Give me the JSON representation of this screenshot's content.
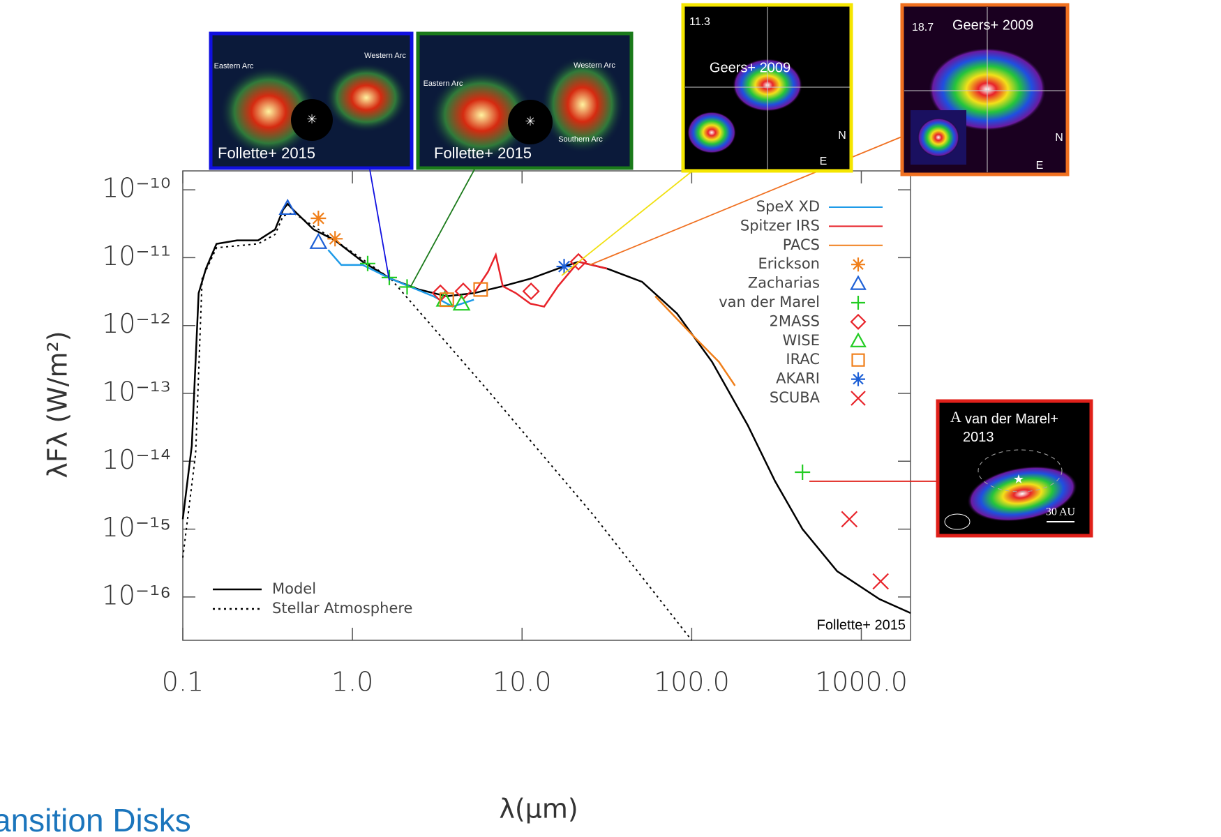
{
  "chart_data": {
    "type": "line",
    "x_label": "λ(μm)",
    "y_label": "λFλ (W/m²)",
    "xscale": "log",
    "yscale": "log",
    "xlim": [
      0.1,
      1950
    ],
    "ylim": [
      2.3e-17,
      1.9e-10
    ],
    "xticks": [
      0.1,
      {
        "value": 1,
        "label": "1.0"
      },
      {
        "value": 10,
        "label": "10.0"
      },
      {
        "value": 100,
        "label": "100.0"
      },
      {
        "value": 1000,
        "label": "1000.0"
      }
    ],
    "yticks": [
      {
        "value": 1e-10,
        "label": "10⁻¹⁰"
      },
      {
        "value": 1e-11,
        "label": "10⁻¹¹"
      },
      {
        "value": 1e-12,
        "label": "10⁻¹²"
      },
      {
        "value": 1e-13,
        "label": "10⁻¹³"
      },
      {
        "value": 1e-14,
        "label": "10⁻¹⁴"
      },
      {
        "value": 1e-15,
        "label": "10⁻¹⁵"
      },
      {
        "value": 1e-16,
        "label": "10⁻¹⁶"
      }
    ],
    "series": [
      {
        "name": "Model",
        "color": "#000000",
        "style": "solid",
        "legend": "lower-left",
        "x": [
          0.1,
          0.113,
          0.124,
          0.137,
          0.158,
          0.209,
          0.278,
          0.35,
          0.39,
          0.415,
          0.447,
          0.59,
          0.79,
          1.15,
          1.68,
          2.46,
          3.58,
          5.2,
          7.7,
          11.2,
          16.3,
          21.5,
          31.7,
          51,
          82,
          132,
          214,
          310,
          450,
          720,
          1280,
          1950
        ],
        "values": [
          1.4e-15,
          1.7e-14,
          3e-12,
          6.9e-12,
          1.6e-11,
          1.8e-11,
          1.8e-11,
          2.6e-11,
          5.1e-11,
          6.2e-11,
          5.1e-11,
          2.6e-11,
          1.8e-11,
          8.7e-12,
          4.9e-12,
          3.4e-12,
          2.7e-12,
          3e-12,
          3.8e-12,
          4.9e-12,
          6.9e-12,
          8.7e-12,
          6.9e-12,
          4.4e-12,
          1.5e-12,
          2.9e-13,
          3.4e-14,
          5.1e-15,
          1e-15,
          2.4e-16,
          9.3e-17,
          5.8e-17
        ]
      },
      {
        "name": "Stellar Atmosphere",
        "color": "#000000",
        "style": "dotted",
        "legend": "lower-left",
        "x": [
          0.1,
          0.119,
          0.13,
          0.158,
          0.278,
          0.35,
          0.39,
          0.447,
          0.79,
          1.68,
          6.3,
          26.4,
          100
        ],
        "values": [
          3.8e-16,
          1.3e-14,
          4.9e-12,
          1.4e-11,
          1.6e-11,
          2.2e-11,
          4.1e-11,
          4.6e-11,
          1.8e-11,
          4.9e-12,
          1.1e-13,
          1.6e-15,
          2.3e-17
        ]
      },
      {
        "name": "SpeX XD",
        "color": "#1e9be8",
        "style": "solid",
        "legend": "upper-right",
        "x": [
          0.72,
          0.86,
          1.15,
          1.68,
          3.0,
          3.9,
          5.2
        ],
        "values": [
          1.3e-11,
          7.8e-12,
          7.8e-12,
          4.9e-12,
          2.7e-12,
          1.9e-12,
          2.4e-12
        ]
      },
      {
        "name": "Spitzer IRS",
        "color": "#e8232a",
        "style": "solid",
        "legend": "upper-right",
        "x": [
          5.2,
          6.3,
          7.0,
          7.7,
          9.2,
          11.2,
          13.5,
          16.3,
          21.5,
          31.7
        ],
        "values": [
          3e-12,
          6.2e-12,
          1.1e-11,
          3.8e-12,
          3e-12,
          2.1e-12,
          1.9e-12,
          3.8e-12,
          8.7e-12,
          6.9e-12
        ]
      },
      {
        "name": "PACS",
        "color": "#f07f1a",
        "style": "solid",
        "legend": "upper-right",
        "x": [
          61,
          100,
          145,
          180
        ],
        "values": [
          2.7e-12,
          7.4e-13,
          2.9e-13,
          1.3e-13
        ]
      },
      {
        "name": "Erickson",
        "color": "#f07f1a",
        "marker": "asterisk",
        "legend": "upper-right",
        "x": [
          0.63,
          0.79
        ],
        "values": [
          3.8e-11,
          1.9e-11
        ]
      },
      {
        "name": "Zacharias",
        "color": "#1c5fd6",
        "marker": "triangle",
        "legend": "upper-right",
        "x": [
          0.415,
          0.63
        ],
        "values": [
          5.4e-11,
          1.7e-11
        ]
      },
      {
        "name": "van der Marel",
        "color": "#22cc22",
        "marker": "plus",
        "legend": "upper-right",
        "x": [
          1.23,
          1.65,
          2.1,
          450
        ],
        "values": [
          8.2e-12,
          5.1e-12,
          3.7e-12,
          6.9e-15
        ]
      },
      {
        "name": "2MASS",
        "color": "#e8232a",
        "marker": "diamond",
        "legend": "upper-right",
        "x": [
          3.3,
          4.5,
          11.3,
          21.5
        ],
        "values": [
          3e-12,
          3.2e-12,
          3.2e-12,
          8.7e-12
        ]
      },
      {
        "name": "WISE",
        "color": "#22cc22",
        "marker": "triangle",
        "legend": "upper-right",
        "x": [
          3.5,
          4.4
        ],
        "values": [
          2.4e-12,
          2.1e-12
        ]
      },
      {
        "name": "IRAC",
        "color": "#f07f1a",
        "marker": "square",
        "legend": "upper-right",
        "x": [
          3.6,
          5.7
        ],
        "values": [
          2.4e-12,
          3.4e-12
        ]
      },
      {
        "name": "AKARI",
        "color": "#1c5fd6",
        "marker": "asterisk",
        "legend": "upper-right",
        "x": [
          17.7
        ],
        "values": [
          7.4e-12
        ]
      },
      {
        "name": "SCUBA",
        "color": "#e8232a",
        "marker": "x",
        "legend": "upper-right",
        "x": [
          850,
          1300
        ],
        "values": [
          1.4e-15,
          1.7e-16
        ]
      }
    ],
    "annotation": "Follette+ 2015",
    "insets": [
      {
        "labels": [
          "Eastern Arc",
          "Western Arc"
        ],
        "credit": "Follette+ 2015"
      },
      {
        "labels": [
          "Eastern Arc",
          "Western Arc",
          "Southern Arc"
        ],
        "credit": "Follette+ 2015"
      },
      {
        "labels": [
          "11.3",
          "N",
          "E"
        ],
        "credit": "Geers+ 2009"
      },
      {
        "labels": [
          "18.7",
          "N",
          "E"
        ],
        "credit": "Geers+ 2009"
      },
      {
        "labels": [
          "A",
          "30 AU"
        ],
        "credit": "van der Marel+ 2013"
      }
    ]
  },
  "footer": "ansition Disks"
}
